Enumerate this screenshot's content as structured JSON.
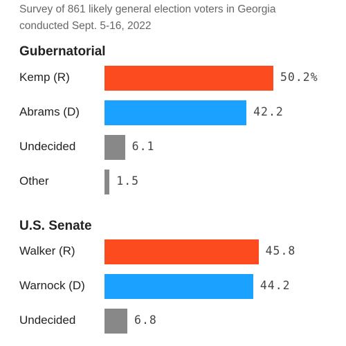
{
  "subtitle_line1": "Survey of 861 likely general election voters in Georgia",
  "subtitle_line2": "conducted Sept. 5-16, 2022",
  "chart_data": [
    {
      "type": "bar",
      "orientation": "horizontal",
      "title": "Gubernatorial",
      "categories": [
        "Kemp (R)",
        "Abrams (D)",
        "Undecided",
        "Other"
      ],
      "values": [
        50.2,
        42.2,
        6.1,
        1.5
      ],
      "value_labels": [
        "50.2%",
        "42.2",
        "6.1",
        "1.5"
      ],
      "colors": [
        "#fc4c1f",
        "#1ba1ff",
        "#888888",
        "#888888"
      ]
    },
    {
      "type": "bar",
      "orientation": "horizontal",
      "title": "U.S. Senate",
      "categories": [
        "Walker (R)",
        "Warnock (D)",
        "Undecided"
      ],
      "values": [
        45.8,
        44.2,
        6.8
      ],
      "value_labels": [
        "45.8",
        "44.2",
        "6.8"
      ],
      "colors": [
        "#fc4c1f",
        "#1ba1ff",
        "#888888"
      ]
    }
  ]
}
